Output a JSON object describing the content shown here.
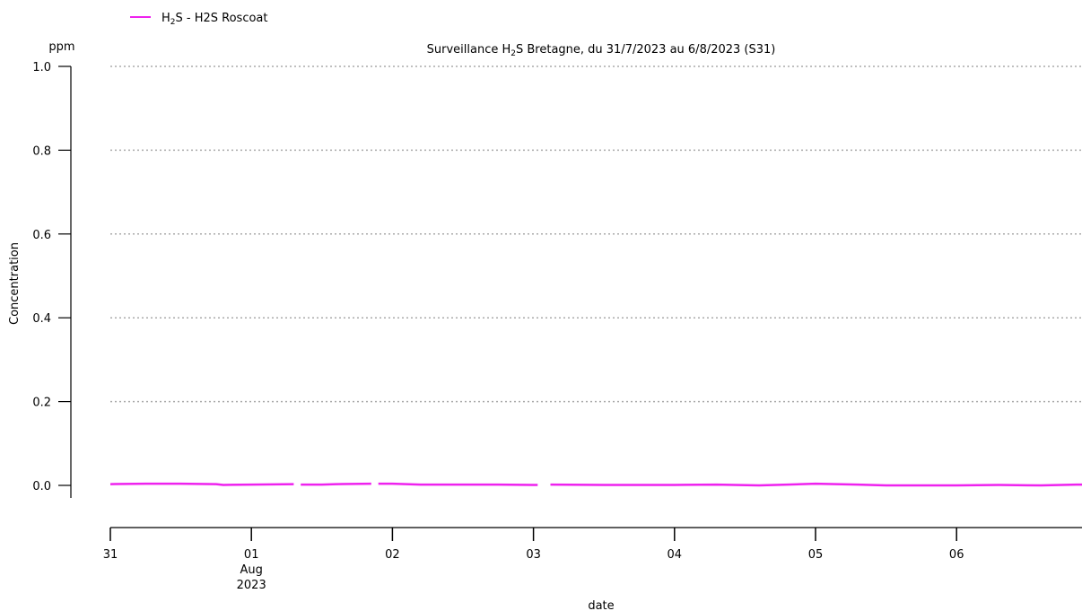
{
  "legend": {
    "placement": "top-left",
    "entries": [
      {
        "label_main": "H",
        "label_sub": "2",
        "label_rest": "S - H2S Roscoat",
        "color": "#ee22ee"
      }
    ]
  },
  "title_parts": {
    "pre": "Surveillance H",
    "sub": "2",
    "post": "S Bretagne, du 31/7/2023 au 6/8/2023 (S31)"
  },
  "chart_data": {
    "type": "line",
    "title": "Surveillance H₂S Bretagne, du 31/7/2023 au 6/8/2023 (S31)",
    "xlabel": "date",
    "ylabel": "Concentration",
    "yunit": "ppm",
    "ylim": [
      0.0,
      1.0
    ],
    "xlim": [
      "2023-07-31 00:00",
      "2023-08-06 22:30"
    ],
    "yticks": [
      {
        "v": 0.0,
        "label": "0.0"
      },
      {
        "v": 0.2,
        "label": "0.2"
      },
      {
        "v": 0.4,
        "label": "0.4"
      },
      {
        "v": 0.6,
        "label": "0.6"
      },
      {
        "v": 0.8,
        "label": "0.8"
      },
      {
        "v": 1.0,
        "label": "1.0"
      }
    ],
    "xticks": [
      {
        "day": 0,
        "label": "31"
      },
      {
        "day": 1,
        "label": "01",
        "label2": "Aug",
        "label3": "2023"
      },
      {
        "day": 2,
        "label": "02"
      },
      {
        "day": 3,
        "label": "03"
      },
      {
        "day": 4,
        "label": "04"
      },
      {
        "day": 5,
        "label": "05"
      },
      {
        "day": 6,
        "label": "06"
      }
    ],
    "grid": "horizontal-dotted",
    "series": [
      {
        "name": "H₂S - H2S Roscoat",
        "color": "#ee22ee",
        "points": [
          [
            0.0,
            0.003
          ],
          [
            0.25,
            0.004
          ],
          [
            0.5,
            0.004
          ],
          [
            0.75,
            0.003
          ],
          [
            0.8,
            0.001
          ],
          [
            1.0,
            0.002
          ],
          [
            1.3,
            0.003
          ],
          [
            null,
            null
          ],
          [
            1.35,
            0.002
          ],
          [
            1.5,
            0.002
          ],
          [
            1.6,
            0.003
          ],
          [
            1.85,
            0.004
          ],
          [
            null,
            null
          ],
          [
            1.9,
            0.004
          ],
          [
            2.0,
            0.004
          ],
          [
            2.2,
            0.002
          ],
          [
            2.5,
            0.002
          ],
          [
            2.75,
            0.002
          ],
          [
            3.0,
            0.001
          ],
          [
            3.03,
            0.001
          ],
          [
            null,
            null
          ],
          [
            3.12,
            0.002
          ],
          [
            3.5,
            0.001
          ],
          [
            4.0,
            0.001
          ],
          [
            4.3,
            0.002
          ],
          [
            4.6,
            0.0
          ],
          [
            4.8,
            0.002
          ],
          [
            5.0,
            0.004
          ],
          [
            5.3,
            0.002
          ],
          [
            5.5,
            0.0
          ],
          [
            6.0,
            0.0
          ],
          [
            6.3,
            0.001
          ],
          [
            6.6,
            0.0
          ],
          [
            6.85,
            0.002
          ],
          [
            6.9375,
            0.002
          ]
        ]
      }
    ]
  }
}
